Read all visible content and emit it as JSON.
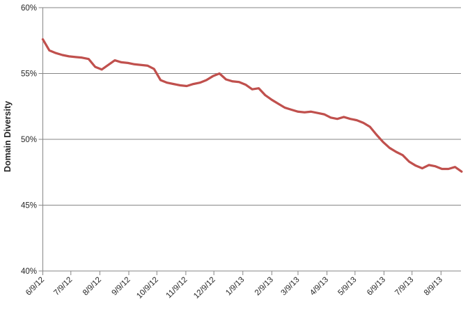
{
  "page": {
    "background_color": "#FFFFFF"
  },
  "chart_data": {
    "type": "line",
    "title": "",
    "xlabel": "",
    "ylabel": "Domain Diversity",
    "ylim": [
      40,
      60
    ],
    "y_tick_step_pct": 5,
    "y_tick_labels": [
      "60%",
      "55%",
      "50%",
      "45%",
      "40%"
    ],
    "x_tick_labels": [
      "6/9/12",
      "7/9/12",
      "8/9/12",
      "9/9/12",
      "10/9/12",
      "11/9/12",
      "12/9/12",
      "1/9/13",
      "2/9/13",
      "3/9/13",
      "4/9/13",
      "5/9/13",
      "6/9/13",
      "7/9/13",
      "8/9/13"
    ],
    "x_tick_rotation_deg": -45,
    "grid": "horizontal gridlines at each 5% tick",
    "legend_position": "none",
    "axis_color": "#868686",
    "gridline_color": "#868686",
    "text_color": "#262626",
    "series": [
      {
        "name": "Domain Diversity",
        "color": "#C0504D",
        "x_start": "6/9/12",
        "x_interval": "weekly",
        "values": [
          57.6,
          56.75,
          56.55,
          56.4,
          56.3,
          56.25,
          56.2,
          56.1,
          55.5,
          55.3,
          55.65,
          56.0,
          55.85,
          55.8,
          55.7,
          55.65,
          55.6,
          55.35,
          54.5,
          54.3,
          54.2,
          54.1,
          54.05,
          54.2,
          54.3,
          54.5,
          54.8,
          55.0,
          54.55,
          54.4,
          54.35,
          54.15,
          53.8,
          53.88,
          53.35,
          53.0,
          52.7,
          52.4,
          52.25,
          52.1,
          52.05,
          52.1,
          52.0,
          51.9,
          51.65,
          51.55,
          51.7,
          51.55,
          51.45,
          51.25,
          50.95,
          50.35,
          49.8,
          49.35,
          49.05,
          48.8,
          48.3,
          48.0,
          47.8,
          48.05,
          47.95,
          47.75,
          47.75,
          47.9,
          47.55
        ]
      }
    ]
  }
}
